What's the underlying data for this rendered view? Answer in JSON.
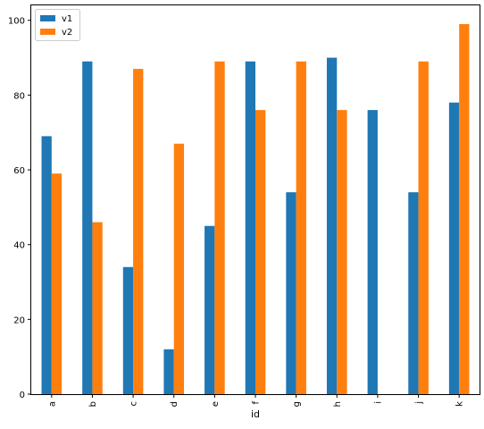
{
  "chart_data": {
    "type": "bar",
    "categories": [
      "a",
      "b",
      "c",
      "d",
      "e",
      "f",
      "g",
      "h",
      "i",
      "j",
      "k"
    ],
    "series": [
      {
        "name": "v1",
        "values": [
          69,
          89,
          34,
          12,
          45,
          89,
          54,
          90,
          76,
          54,
          78
        ],
        "color": "#1f77b4"
      },
      {
        "name": "v2",
        "values": [
          59,
          46,
          87,
          67,
          89,
          76,
          89,
          76,
          null,
          89,
          99
        ],
        "color": "#ff7f0e"
      }
    ],
    "title": "",
    "xlabel": "id",
    "ylabel": "",
    "ylim": [
      0,
      104
    ],
    "yticks": [
      0,
      20,
      40,
      60,
      80,
      100
    ],
    "grid": false,
    "legend_position": "top-left"
  }
}
